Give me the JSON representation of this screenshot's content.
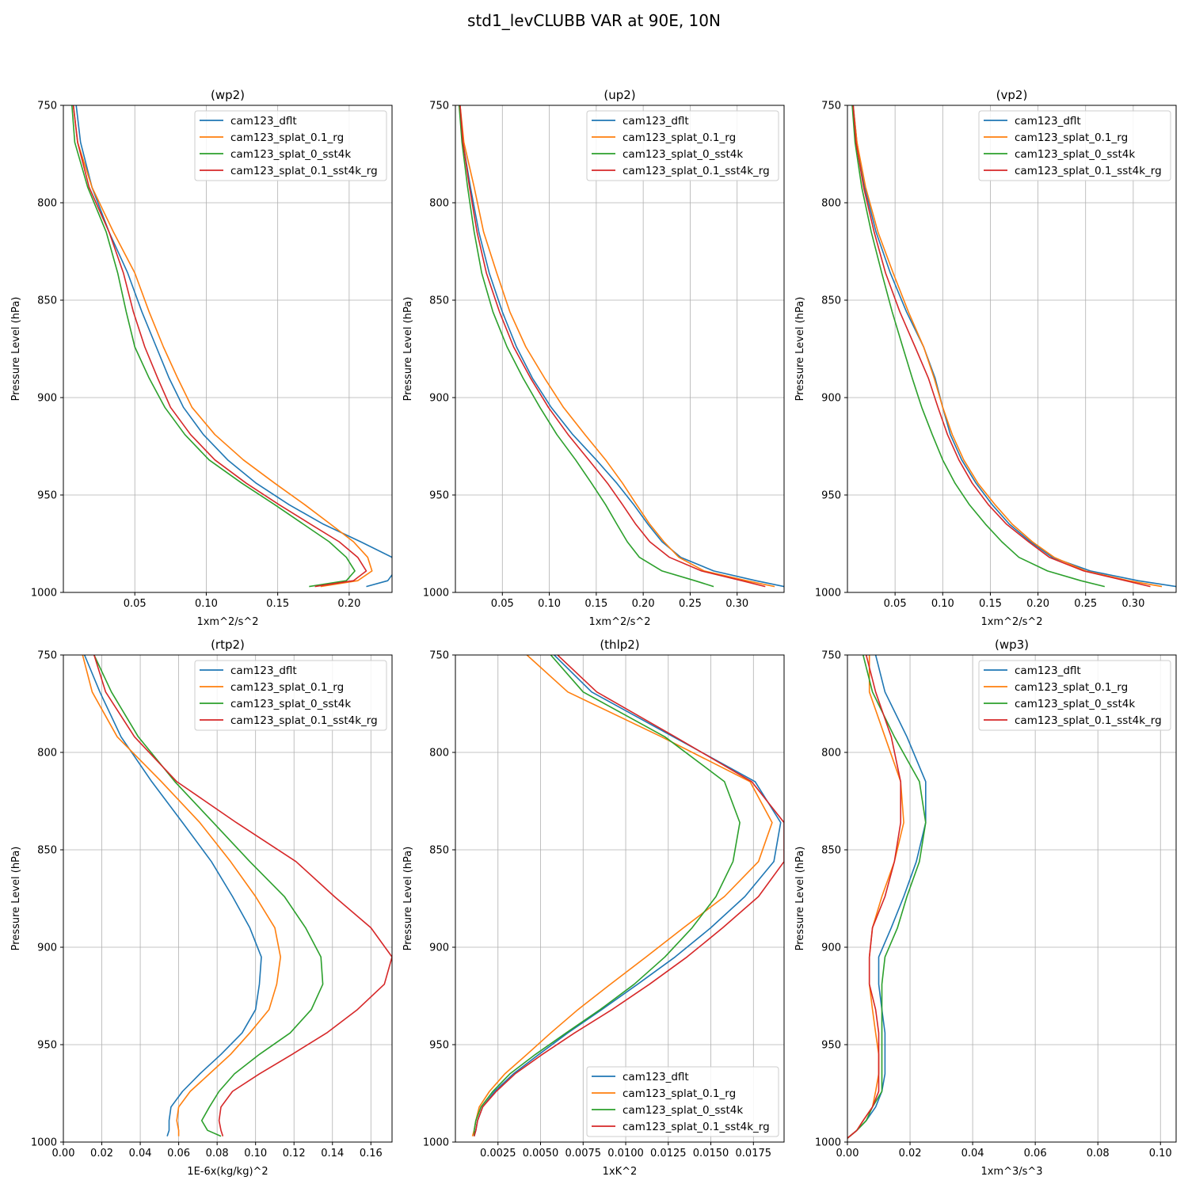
{
  "figure": {
    "title": "std1_levCLUBB VAR at 90E, 10N"
  },
  "colors": {
    "cam123_dflt": "#1f77b4",
    "cam123_splat_0.1_rg": "#ff7f0e",
    "cam123_splat_0_sst4k": "#2ca02c",
    "cam123_splat_0.1_sst4k_rg": "#d62728"
  },
  "chart_data": [
    {
      "type": "line",
      "title": "(wp2)",
      "xlabel": "1xm^2/s^2",
      "ylabel": "Pressure Level (hPa)",
      "xlim": [
        0.0,
        0.23
      ],
      "ylim": [
        1000,
        750
      ],
      "xticks": [
        0.05,
        0.1,
        0.15,
        0.2
      ],
      "xtick_labels": [
        "0.05",
        "0.10",
        "0.15",
        "0.20"
      ],
      "yticks": [
        750,
        800,
        850,
        900,
        950,
        1000
      ],
      "ytick_labels": [
        "750",
        "800",
        "850",
        "900",
        "950",
        "1000"
      ],
      "legend": "top-right",
      "grid": true,
      "y": [
        750,
        769,
        792,
        815,
        836,
        856,
        874,
        890,
        905,
        919,
        932,
        944,
        955,
        965,
        974,
        982,
        989,
        994,
        997
      ],
      "series": [
        {
          "name": "cam123_dflt",
          "x": [
            0.009,
            0.012,
            0.02,
            0.032,
            0.045,
            0.055,
            0.065,
            0.074,
            0.084,
            0.098,
            0.115,
            0.135,
            0.158,
            0.182,
            0.208,
            0.23,
            0.232,
            0.227,
            0.212
          ]
        },
        {
          "name": "cam123_splat_0.1_rg",
          "x": [
            0.007,
            0.01,
            0.02,
            0.035,
            0.05,
            0.06,
            0.07,
            0.08,
            0.09,
            0.106,
            0.126,
            0.148,
            0.169,
            0.187,
            0.203,
            0.213,
            0.216,
            0.206,
            0.18
          ]
        },
        {
          "name": "cam123_splat_0_sst4k",
          "x": [
            0.006,
            0.008,
            0.017,
            0.03,
            0.038,
            0.044,
            0.05,
            0.06,
            0.071,
            0.085,
            0.102,
            0.125,
            0.148,
            0.168,
            0.186,
            0.198,
            0.204,
            0.198,
            0.172
          ]
        },
        {
          "name": "cam123_splat_0.1_sst4k_rg",
          "x": [
            0.007,
            0.01,
            0.018,
            0.032,
            0.042,
            0.049,
            0.057,
            0.066,
            0.075,
            0.089,
            0.106,
            0.128,
            0.151,
            0.173,
            0.193,
            0.206,
            0.212,
            0.203,
            0.176
          ]
        }
      ]
    },
    {
      "type": "line",
      "title": "(up2)",
      "xlabel": "1xm^2/s^2",
      "ylabel": "Pressure Level (hPa)",
      "xlim": [
        0.0,
        0.35
      ],
      "ylim": [
        1000,
        750
      ],
      "xticks": [
        0.05,
        0.1,
        0.15,
        0.2,
        0.25,
        0.3
      ],
      "xtick_labels": [
        "0.05",
        "0.10",
        "0.15",
        "0.20",
        "0.25",
        "0.30"
      ],
      "yticks": [
        750,
        800,
        850,
        900,
        950,
        1000
      ],
      "ytick_labels": [
        "750",
        "800",
        "850",
        "900",
        "950",
        "1000"
      ],
      "legend": "top-right",
      "grid": true,
      "y": [
        750,
        769,
        792,
        815,
        836,
        856,
        874,
        890,
        905,
        919,
        932,
        944,
        955,
        965,
        974,
        982,
        989,
        994,
        997
      ],
      "series": [
        {
          "name": "cam123_dflt",
          "x": [
            0.005,
            0.008,
            0.016,
            0.025,
            0.036,
            0.05,
            0.065,
            0.082,
            0.102,
            0.125,
            0.15,
            0.172,
            0.19,
            0.205,
            0.22,
            0.24,
            0.275,
            0.32,
            0.35
          ]
        },
        {
          "name": "cam123_splat_0.1_rg",
          "x": [
            0.005,
            0.009,
            0.02,
            0.03,
            0.044,
            0.058,
            0.075,
            0.095,
            0.115,
            0.138,
            0.16,
            0.178,
            0.193,
            0.207,
            0.222,
            0.238,
            0.265,
            0.31,
            0.34
          ]
        },
        {
          "name": "cam123_splat_0_sst4k",
          "x": [
            0.004,
            0.007,
            0.013,
            0.02,
            0.028,
            0.04,
            0.055,
            0.072,
            0.09,
            0.108,
            0.128,
            0.145,
            0.16,
            0.172,
            0.183,
            0.196,
            0.22,
            0.255,
            0.275
          ]
        },
        {
          "name": "cam123_splat_0.1_sst4k_rg",
          "x": [
            0.005,
            0.008,
            0.015,
            0.023,
            0.033,
            0.047,
            0.062,
            0.08,
            0.099,
            0.12,
            0.142,
            0.162,
            0.178,
            0.192,
            0.207,
            0.228,
            0.262,
            0.305,
            0.33
          ]
        }
      ]
    },
    {
      "type": "line",
      "title": "(vp2)",
      "xlabel": "1xm^2/s^2",
      "ylabel": "Pressure Level (hPa)",
      "xlim": [
        0.0,
        0.345
      ],
      "ylim": [
        1000,
        750
      ],
      "xticks": [
        0.05,
        0.1,
        0.15,
        0.2,
        0.25,
        0.3
      ],
      "xtick_labels": [
        "0.05",
        "0.10",
        "0.15",
        "0.20",
        "0.25",
        "0.30"
      ],
      "yticks": [
        750,
        800,
        850,
        900,
        950,
        1000
      ],
      "ytick_labels": [
        "750",
        "800",
        "850",
        "900",
        "950",
        "1000"
      ],
      "legend": "top-right",
      "grid": true,
      "y": [
        750,
        769,
        792,
        815,
        836,
        856,
        874,
        890,
        905,
        919,
        932,
        944,
        955,
        965,
        974,
        982,
        989,
        994,
        997
      ],
      "series": [
        {
          "name": "cam123_dflt",
          "x": [
            0.006,
            0.01,
            0.018,
            0.03,
            0.045,
            0.062,
            0.08,
            0.092,
            0.1,
            0.108,
            0.12,
            0.135,
            0.152,
            0.17,
            0.192,
            0.215,
            0.255,
            0.305,
            0.345
          ]
        },
        {
          "name": "cam123_splat_0.1_rg",
          "x": [
            0.006,
            0.01,
            0.019,
            0.032,
            0.048,
            0.064,
            0.08,
            0.091,
            0.1,
            0.11,
            0.122,
            0.137,
            0.155,
            0.173,
            0.194,
            0.217,
            0.25,
            0.295,
            0.33
          ]
        },
        {
          "name": "cam123_splat_0_sst4k",
          "x": [
            0.005,
            0.008,
            0.015,
            0.025,
            0.036,
            0.047,
            0.058,
            0.068,
            0.078,
            0.089,
            0.1,
            0.113,
            0.128,
            0.145,
            0.162,
            0.18,
            0.21,
            0.245,
            0.27
          ]
        },
        {
          "name": "cam123_splat_0.1_sst4k_rg",
          "x": [
            0.006,
            0.009,
            0.017,
            0.028,
            0.04,
            0.055,
            0.071,
            0.085,
            0.095,
            0.105,
            0.117,
            0.131,
            0.148,
            0.167,
            0.19,
            0.212,
            0.248,
            0.292,
            0.318
          ]
        }
      ]
    },
    {
      "type": "line",
      "title": "(rtp2)",
      "xlabel": "1E-6x(kg/kg)^2",
      "ylabel": "Pressure Level (hPa)",
      "xlim": [
        0.0,
        0.171
      ],
      "ylim": [
        1000,
        750
      ],
      "xticks": [
        0.0,
        0.02,
        0.04,
        0.06,
        0.08,
        0.1,
        0.12,
        0.14,
        0.16
      ],
      "xtick_labels": [
        "0.00",
        "0.02",
        "0.04",
        "0.06",
        "0.08",
        "0.10",
        "0.12",
        "0.14",
        "0.16"
      ],
      "yticks": [
        750,
        800,
        850,
        900,
        950,
        1000
      ],
      "ytick_labels": [
        "750",
        "800",
        "850",
        "900",
        "950",
        "1000"
      ],
      "legend": "top-right",
      "grid": true,
      "y": [
        750,
        769,
        792,
        815,
        836,
        856,
        874,
        890,
        905,
        919,
        932,
        944,
        955,
        965,
        974,
        982,
        989,
        994,
        997
      ],
      "series": [
        {
          "name": "cam123_dflt",
          "x": [
            0.011,
            0.019,
            0.03,
            0.046,
            0.062,
            0.077,
            0.088,
            0.097,
            0.103,
            0.102,
            0.1,
            0.093,
            0.082,
            0.071,
            0.062,
            0.056,
            0.055,
            0.055,
            0.054
          ]
        },
        {
          "name": "cam123_splat_0.1_rg",
          "x": [
            0.01,
            0.015,
            0.028,
            0.051,
            0.071,
            0.087,
            0.1,
            0.11,
            0.113,
            0.111,
            0.107,
            0.097,
            0.087,
            0.076,
            0.066,
            0.06,
            0.059,
            0.06,
            0.06
          ]
        },
        {
          "name": "cam123_splat_0_sst4k",
          "x": [
            0.016,
            0.025,
            0.039,
            0.058,
            0.078,
            0.097,
            0.115,
            0.126,
            0.134,
            0.135,
            0.129,
            0.118,
            0.102,
            0.089,
            0.081,
            0.076,
            0.072,
            0.075,
            0.082
          ]
        },
        {
          "name": "cam123_splat_0.1_sst4k_rg",
          "x": [
            0.016,
            0.022,
            0.037,
            0.059,
            0.09,
            0.121,
            0.141,
            0.16,
            0.171,
            0.167,
            0.153,
            0.137,
            0.119,
            0.102,
            0.088,
            0.082,
            0.081,
            0.082,
            0.083
          ]
        }
      ]
    },
    {
      "type": "line",
      "title": "(thlp2)",
      "xlabel": "1xK^2",
      "ylabel": "Pressure Level (hPa)",
      "xlim": [
        0.0,
        0.0193
      ],
      "ylim": [
        1000,
        750
      ],
      "xticks": [
        0.0025,
        0.005,
        0.0075,
        0.01,
        0.0125,
        0.015,
        0.0175
      ],
      "xtick_labels": [
        "0.0025",
        "0.0050",
        "0.0075",
        "0.0100",
        "0.0125",
        "0.0150",
        "0.0175"
      ],
      "yticks": [
        750,
        800,
        850,
        900,
        950,
        1000
      ],
      "ytick_labels": [
        "750",
        "800",
        "850",
        "900",
        "950",
        "1000"
      ],
      "legend": "bottom-right",
      "grid": true,
      "y": [
        750,
        769,
        792,
        815,
        836,
        856,
        874,
        890,
        905,
        919,
        932,
        944,
        955,
        965,
        974,
        982,
        989,
        994,
        997
      ],
      "series": [
        {
          "name": "cam123_dflt",
          "x": [
            0.0058,
            0.008,
            0.0128,
            0.0176,
            0.0191,
            0.0187,
            0.017,
            0.015,
            0.0129,
            0.0107,
            0.0086,
            0.0066,
            0.0049,
            0.0034,
            0.0023,
            0.0016,
            0.0013,
            0.0012,
            0.0011
          ]
        },
        {
          "name": "cam123_splat_0.1_rg",
          "x": [
            0.0042,
            0.0066,
            0.0121,
            0.0173,
            0.0186,
            0.0178,
            0.0158,
            0.0134,
            0.0112,
            0.0091,
            0.0072,
            0.0056,
            0.0042,
            0.0029,
            0.002,
            0.0014,
            0.0012,
            0.0011,
            0.001
          ]
        },
        {
          "name": "cam123_splat_0_sst4k",
          "x": [
            0.0056,
            0.0075,
            0.0123,
            0.0158,
            0.0167,
            0.0163,
            0.0153,
            0.0139,
            0.0123,
            0.0105,
            0.0085,
            0.0065,
            0.0047,
            0.0032,
            0.0022,
            0.0015,
            0.0012,
            0.0011,
            0.0011
          ]
        },
        {
          "name": "cam123_splat_0.1_sst4k_rg",
          "x": [
            0.006,
            0.0083,
            0.0129,
            0.0174,
            0.0193,
            0.0193,
            0.0178,
            0.0157,
            0.0136,
            0.0114,
            0.0092,
            0.007,
            0.0051,
            0.0035,
            0.0024,
            0.0016,
            0.0013,
            0.0012,
            0.0011
          ]
        }
      ]
    },
    {
      "type": "line",
      "title": "(wp3)",
      "xlabel": "1xm^3/s^3",
      "ylabel": "Pressure Level (hPa)",
      "xlim": [
        0.0,
        0.105
      ],
      "ylim": [
        1000,
        750
      ],
      "xticks": [
        0.0,
        0.02,
        0.04,
        0.06,
        0.08,
        0.1
      ],
      "xtick_labels": [
        "0.00",
        "0.02",
        "0.04",
        "0.06",
        "0.08",
        "0.10"
      ],
      "yticks": [
        750,
        800,
        850,
        900,
        950,
        1000
      ],
      "ytick_labels": [
        "750",
        "800",
        "850",
        "900",
        "950",
        "1000"
      ],
      "legend": "top-right",
      "grid": true,
      "y": [
        750,
        769,
        792,
        815,
        836,
        856,
        874,
        890,
        905,
        919,
        932,
        944,
        955,
        965,
        974,
        982,
        989,
        994,
        998
      ],
      "series": [
        {
          "name": "cam123_dflt",
          "x": [
            0.009,
            0.012,
            0.019,
            0.025,
            0.025,
            0.022,
            0.018,
            0.014,
            0.01,
            0.01,
            0.011,
            0.012,
            0.012,
            0.012,
            0.011,
            0.009,
            0.006,
            0.003,
            0.0
          ]
        },
        {
          "name": "cam123_splat_0.1_rg",
          "x": [
            0.007,
            0.007,
            0.012,
            0.017,
            0.018,
            0.015,
            0.011,
            0.008,
            0.007,
            0.007,
            0.008,
            0.009,
            0.01,
            0.01,
            0.009,
            0.008,
            0.005,
            0.003,
            0.0
          ]
        },
        {
          "name": "cam123_splat_0_sst4k",
          "x": [
            0.005,
            0.008,
            0.015,
            0.023,
            0.025,
            0.023,
            0.019,
            0.016,
            0.012,
            0.011,
            0.011,
            0.011,
            0.011,
            0.011,
            0.011,
            0.008,
            0.006,
            0.003,
            0.0
          ]
        },
        {
          "name": "cam123_splat_0.1_sst4k_rg",
          "x": [
            0.006,
            0.009,
            0.014,
            0.017,
            0.017,
            0.015,
            0.012,
            0.008,
            0.007,
            0.007,
            0.009,
            0.01,
            0.01,
            0.01,
            0.01,
            0.008,
            0.005,
            0.003,
            0.0
          ]
        }
      ]
    }
  ]
}
